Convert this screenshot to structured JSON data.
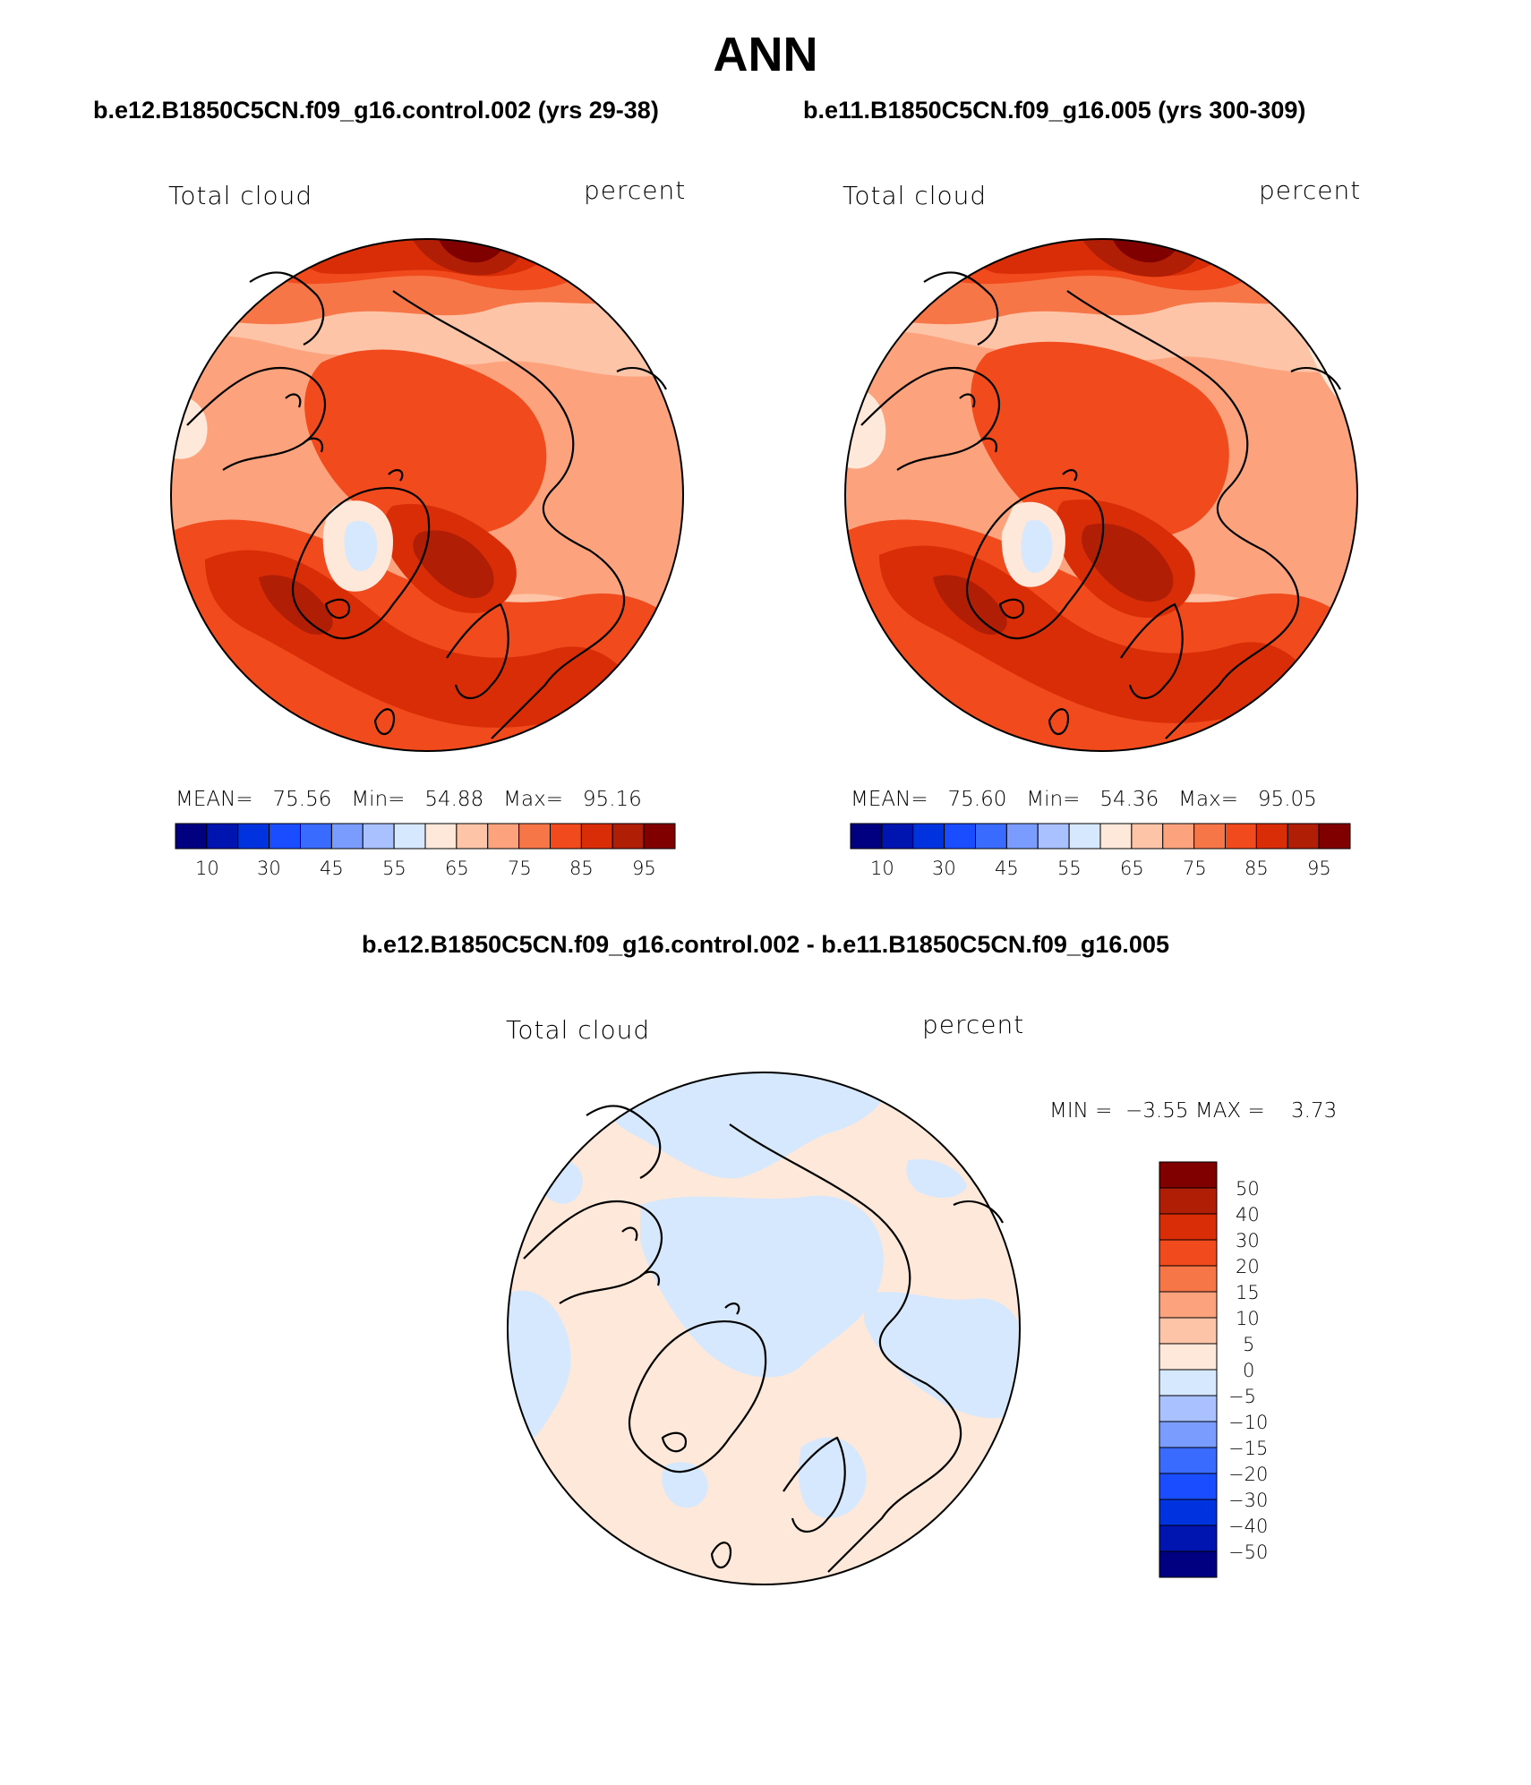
{
  "page": {
    "title": "ANN"
  },
  "panels": [
    {
      "case_title": "b.e12.B1850C5CN.f09_g16.control.002 (yrs 29-38)",
      "variable": "Total cloud",
      "units": "percent",
      "stats": {
        "mean_label": "MEAN=",
        "mean": "75.56",
        "min_label": "Min=",
        "min": "54.88",
        "max_label": "Max=",
        "max": "95.16"
      },
      "colorbar_ticks": [
        "10",
        "30",
        "45",
        "55",
        "65",
        "75",
        "85",
        "95"
      ]
    },
    {
      "case_title": "b.e11.B1850C5CN.f09_g16.005 (yrs 300-309)",
      "variable": "Total cloud",
      "units": "percent",
      "stats": {
        "mean_label": "MEAN=",
        "mean": "75.60",
        "min_label": "Min=",
        "min": "54.36",
        "max_label": "Max=",
        "max": "95.05"
      },
      "colorbar_ticks": [
        "10",
        "30",
        "45",
        "55",
        "65",
        "75",
        "85",
        "95"
      ]
    }
  ],
  "diff_panel": {
    "title": "b.e12.B1850C5CN.f09_g16.control.002 - b.e11.B1850C5CN.f09_g16.005",
    "variable": "Total cloud",
    "units": "percent",
    "min_label": "MIN =",
    "min": "−3.55",
    "max_label": "MAX =",
    "max": "3.73",
    "colorbar_ticks": [
      "50",
      "40",
      "30",
      "20",
      "15",
      "10",
      "5",
      "0",
      "−5",
      "−10",
      "−15",
      "−20",
      "−30",
      "−40",
      "−50"
    ]
  },
  "colors": {
    "scale": [
      "#000080",
      "#0015b0",
      "#0033e0",
      "#1a4dff",
      "#3a6bff",
      "#7a9cff",
      "#a9c1ff",
      "#d6e8fd",
      "#fde8d9",
      "#fdc4a7",
      "#fca37e",
      "#f67648",
      "#f04a1d",
      "#d92d08",
      "#b01e06",
      "#800000"
    ],
    "diff_scale": [
      "#800000",
      "#b01e06",
      "#d92d08",
      "#f04a1d",
      "#f67648",
      "#fca37e",
      "#fdc4a7",
      "#fde8d9",
      "#d6e8fd",
      "#a9c1ff",
      "#7a9cff",
      "#3a6bff",
      "#1a4dff",
      "#0033e0",
      "#0015b0",
      "#000080"
    ],
    "land_line": "#000000"
  }
}
